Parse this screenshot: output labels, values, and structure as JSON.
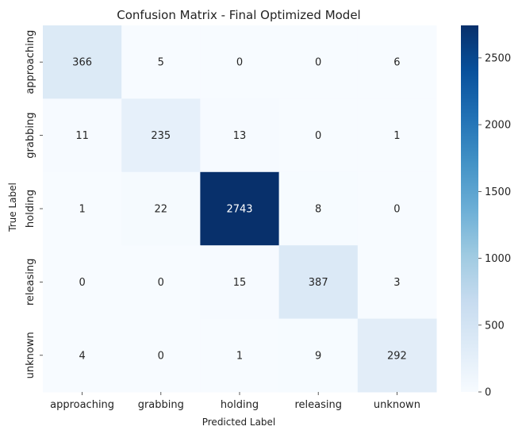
{
  "chart_data": {
    "type": "heatmap",
    "title": "Confusion Matrix - Final Optimized Model",
    "xlabel": "Predicted Label",
    "ylabel": "True Label",
    "x_categories": [
      "approaching",
      "grabbing",
      "holding",
      "releasing",
      "unknown"
    ],
    "y_categories": [
      "approaching",
      "grabbing",
      "holding",
      "releasing",
      "unknown"
    ],
    "values": [
      [
        366,
        5,
        0,
        0,
        6
      ],
      [
        11,
        235,
        13,
        0,
        1
      ],
      [
        1,
        22,
        2743,
        8,
        0
      ],
      [
        0,
        0,
        15,
        387,
        3
      ],
      [
        4,
        0,
        1,
        9,
        292
      ]
    ],
    "colorbar": {
      "colormap": "Blues",
      "min": 0,
      "max": 2743,
      "ticks": [
        0,
        500,
        1000,
        1500,
        2000,
        2500
      ]
    }
  }
}
